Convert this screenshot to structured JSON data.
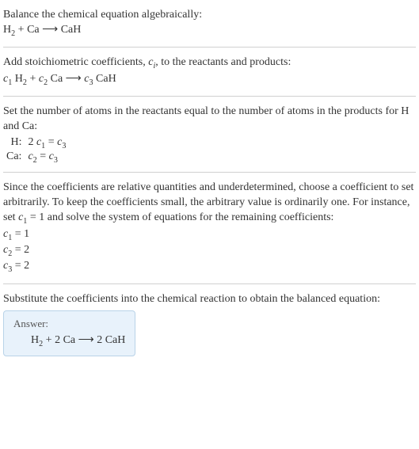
{
  "sec1": {
    "line1": "Balance the chemical equation algebraically:",
    "eq_h2": "H",
    "eq_sub2a": "2",
    "eq_plus": " + Ca ",
    "eq_arrow": "⟶",
    "eq_caH": " CaH"
  },
  "sec2": {
    "line1a": "Add stoichiometric coefficients, ",
    "ci_c": "c",
    "ci_i": "i",
    "line1b": ", to the reactants and products:",
    "c1": "c",
    "s1": "1",
    "sp1": " ",
    "h2": "H",
    "h2s": "2",
    "plus": " + ",
    "c2": "c",
    "s2": "2",
    "ca": " Ca ",
    "arrow": "⟶",
    "sp2": " ",
    "c3": "c",
    "s3": "3",
    "cah": " CaH"
  },
  "sec3": {
    "line1": "Set the number of atoms in the reactants equal to the number of atoms in the products for H and Ca:",
    "rowH": {
      "label": "H:",
      "eq_2": "2",
      "eq_mid": " ",
      "c1": "c",
      "s1": "1",
      "eq_eq": " = ",
      "c3": "c",
      "s3": "3"
    },
    "rowCa": {
      "label": "Ca:",
      "c2": "c",
      "s2": "2",
      "eq_eq": " = ",
      "c3": "c",
      "s3": "3"
    }
  },
  "sec4": {
    "line1a": "Since the coefficients are relative quantities and underdetermined, choose a coefficient to set arbitrarily. To keep the coefficients small, the arbitrary value is ordinarily one. For instance, set ",
    "c1": "c",
    "s1": "1",
    "line1b": " = 1 and solve the system of equations for the remaining coefficients:",
    "r1": {
      "c": "c",
      "s": "1",
      "v": " = 1"
    },
    "r2": {
      "c": "c",
      "s": "2",
      "v": " = 2"
    },
    "r3": {
      "c": "c",
      "s": "3",
      "v": " = 2"
    }
  },
  "sec5": {
    "line1": "Substitute the coefficients into the chemical reaction to obtain the balanced equation:"
  },
  "answer": {
    "label": "Answer:",
    "h2": "H",
    "h2s": "2",
    "plus2ca": " + 2 Ca ",
    "arrow": "⟶",
    "twocah": " 2 CaH"
  },
  "colors": {
    "text": "#333333",
    "divider": "#d0d0d0",
    "answer_bg": "#e8f2fb",
    "answer_border": "#b9d3e8"
  },
  "fontsize_body_pt": 10.5,
  "fontsize_answer_label_pt": 10
}
